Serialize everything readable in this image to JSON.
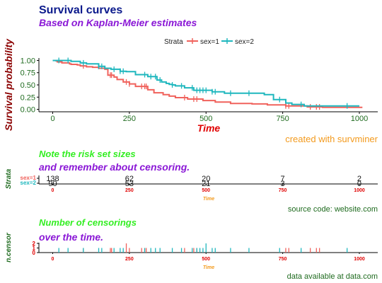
{
  "titles": {
    "title": "Survival curves",
    "subtitle": "Based on Kaplan-Meier estimates",
    "caption": "created with survminer"
  },
  "legend": {
    "title": "Strata",
    "position": "top"
  },
  "colors": {
    "sex1": "#f0625c",
    "sex2": "#1fb7be",
    "title": "#0b1a8c",
    "subtitle": "#8a17d6",
    "ylabel_main": "#8b0000",
    "xlabel_main": "#e00000",
    "caption": "#f39a1d",
    "risk_title": "#33ee22",
    "dark_green": "#1f6b1f",
    "tick_red": "#e00000",
    "tick_orange": "#f39a1d"
  },
  "chart_data": [
    {
      "type": "line",
      "name": "survival",
      "xlabel": "Time",
      "ylabel": "Survival probability",
      "xlim": [
        -45,
        1060
      ],
      "ylim": [
        -0.05,
        1.05
      ],
      "x_ticks": [
        "0",
        "250",
        "500",
        "750",
        "1000"
      ],
      "y_ticks": [
        "0.00",
        "0.25",
        "0.50",
        "0.75",
        "1.00"
      ],
      "x_tick_values": [
        0,
        250,
        500,
        750,
        1000
      ],
      "y_tick_values": [
        0,
        0.25,
        0.5,
        0.75,
        1.0
      ],
      "series": [
        {
          "name": "sex=1",
          "points": [
            [
              0,
              1
            ],
            [
              11,
              0.99
            ],
            [
              15,
              0.97
            ],
            [
              30,
              0.95
            ],
            [
              55,
              0.93
            ],
            [
              60,
              0.92
            ],
            [
              80,
              0.91
            ],
            [
              90,
              0.89
            ],
            [
              110,
              0.87
            ],
            [
              130,
              0.86
            ],
            [
              150,
              0.84
            ],
            [
              170,
              0.82
            ],
            [
              180,
              0.7
            ],
            [
              200,
              0.66
            ],
            [
              210,
              0.61
            ],
            [
              230,
              0.56
            ],
            [
              250,
              0.52
            ],
            [
              270,
              0.47
            ],
            [
              310,
              0.4
            ],
            [
              330,
              0.34
            ],
            [
              360,
              0.3
            ],
            [
              380,
              0.27
            ],
            [
              400,
              0.24
            ],
            [
              440,
              0.21
            ],
            [
              490,
              0.18
            ],
            [
              530,
              0.15
            ],
            [
              580,
              0.12
            ],
            [
              650,
              0.11
            ],
            [
              700,
              0.09
            ],
            [
              760,
              0.07
            ],
            [
              830,
              0.05
            ],
            [
              880,
              0.04
            ],
            [
              1010,
              0.04
            ]
          ],
          "censor_times": [
            100,
            188,
            192,
            240,
            250,
            290,
            300,
            305,
            430,
            460,
            470,
            760,
            770,
            840,
            860,
            870
          ]
        },
        {
          "name": "sex=2",
          "points": [
            [
              0,
              1
            ],
            [
              60,
              0.98
            ],
            [
              90,
              0.95
            ],
            [
              110,
              0.93
            ],
            [
              150,
              0.88
            ],
            [
              170,
              0.84
            ],
            [
              190,
              0.82
            ],
            [
              220,
              0.78
            ],
            [
              240,
              0.77
            ],
            [
              270,
              0.71
            ],
            [
              310,
              0.67
            ],
            [
              340,
              0.6
            ],
            [
              355,
              0.56
            ],
            [
              370,
              0.53
            ],
            [
              380,
              0.51
            ],
            [
              390,
              0.5
            ],
            [
              400,
              0.48
            ],
            [
              430,
              0.44
            ],
            [
              460,
              0.39
            ],
            [
              520,
              0.36
            ],
            [
              560,
              0.33
            ],
            [
              660,
              0.33
            ],
            [
              690,
              0.3
            ],
            [
              720,
              0.2
            ],
            [
              760,
              0.13
            ],
            [
              780,
              0.1
            ],
            [
              820,
              0.07
            ],
            [
              1000,
              0.07
            ]
          ],
          "censor_times": [
            20,
            50,
            100,
            150,
            160,
            200,
            220,
            230,
            300,
            320,
            335,
            350,
            390,
            420,
            455,
            470,
            480,
            490,
            500,
            520,
            530,
            580,
            640,
            740,
            810,
            960
          ]
        }
      ]
    },
    {
      "type": "table",
      "name": "risk-table",
      "title_line1": "Note the risk set sizes",
      "title_line2": "and remember about censoring.",
      "ylabel": "Strata",
      "x_ticks": [
        "0",
        "250",
        "500",
        "750",
        "1000"
      ],
      "x_tick_values": [
        0,
        250,
        500,
        750,
        1000
      ],
      "xlabel": "Time",
      "rows": [
        {
          "name": "sex=1",
          "values": [
            138,
            62,
            20,
            7,
            2
          ]
        },
        {
          "name": "sex=2",
          "values": [
            90,
            53,
            21,
            3,
            0
          ]
        }
      ],
      "caption": "source code: website.com"
    },
    {
      "type": "bar",
      "name": "n-censor",
      "title_line1": "Number of censorings",
      "title_line2": "over the time.",
      "ylabel": "n.censor",
      "y_ticks": [
        "0",
        "1",
        "2"
      ],
      "y_tick_values": [
        0,
        1,
        2
      ],
      "x_ticks": [
        "0",
        "250",
        "500",
        "750",
        "1000"
      ],
      "x_tick_values": [
        0,
        250,
        500,
        750,
        1000
      ],
      "xlabel": "Time",
      "series": [
        {
          "name": "sex=1",
          "events": [
            [
              100,
              1
            ],
            [
              188,
              1
            ],
            [
              192,
              1
            ],
            [
              240,
              2
            ],
            [
              250,
              1
            ],
            [
              290,
              1
            ],
            [
              300,
              1
            ],
            [
              305,
              1
            ],
            [
              430,
              1
            ],
            [
              460,
              1
            ],
            [
              470,
              1
            ],
            [
              760,
              1
            ],
            [
              770,
              1
            ],
            [
              840,
              1
            ],
            [
              860,
              1
            ],
            [
              870,
              1
            ]
          ]
        },
        {
          "name": "sex=2",
          "events": [
            [
              20,
              1
            ],
            [
              50,
              1
            ],
            [
              100,
              1
            ],
            [
              150,
              1
            ],
            [
              160,
              1
            ],
            [
              200,
              1
            ],
            [
              220,
              1
            ],
            [
              230,
              1
            ],
            [
              300,
              1
            ],
            [
              320,
              1
            ],
            [
              335,
              1
            ],
            [
              350,
              1
            ],
            [
              390,
              1
            ],
            [
              420,
              1
            ],
            [
              455,
              1
            ],
            [
              470,
              1
            ],
            [
              480,
              1
            ],
            [
              490,
              1
            ],
            [
              500,
              2
            ],
            [
              520,
              1
            ],
            [
              530,
              1
            ],
            [
              580,
              1
            ],
            [
              640,
              1
            ],
            [
              740,
              1
            ],
            [
              810,
              1
            ],
            [
              960,
              1
            ]
          ]
        }
      ],
      "caption": "data available at data.com"
    }
  ]
}
